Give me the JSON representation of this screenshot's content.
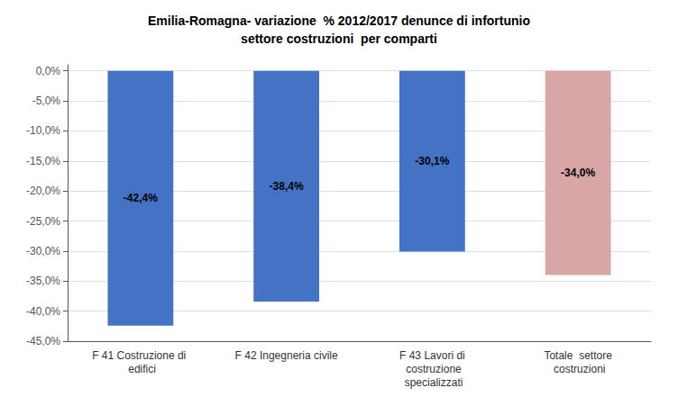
{
  "chart_data": {
    "type": "bar",
    "title": "Emilia-Romagna- variazione  % 2012/2017 denunce di infortunio\nsettore costruzioni  per comparti",
    "categories": [
      "F 41 Costruzione di \n edifici",
      "F 42 Ingegneria civile",
      "F 43 Lavori di\n costruzione\n specializzati",
      "Totale  settore\n costruzioni"
    ],
    "values": [
      -42.4,
      -38.4,
      -30.1,
      -34.0
    ],
    "value_labels": [
      "-42,4%",
      "-38,4%",
      "-30,1%",
      "-34,0%"
    ],
    "colors": [
      "#4472C4",
      "#4472C4",
      "#4472C4",
      "#D9A6A6"
    ],
    "ylim": [
      -45,
      1
    ],
    "yticks": [
      {
        "value": 0,
        "label": "0,0%"
      },
      {
        "value": -5,
        "label": "-5,0%"
      },
      {
        "value": -10,
        "label": "-10,0%"
      },
      {
        "value": -15,
        "label": "-15,0%"
      },
      {
        "value": -20,
        "label": "-20,0%"
      },
      {
        "value": -25,
        "label": "-25,0%"
      },
      {
        "value": -30,
        "label": "-30,0%"
      },
      {
        "value": -35,
        "label": "-35,0%"
      },
      {
        "value": -40,
        "label": "-40,0%"
      },
      {
        "value": -45,
        "label": "-45,0%"
      }
    ],
    "grid": true,
    "data_labels": true
  }
}
